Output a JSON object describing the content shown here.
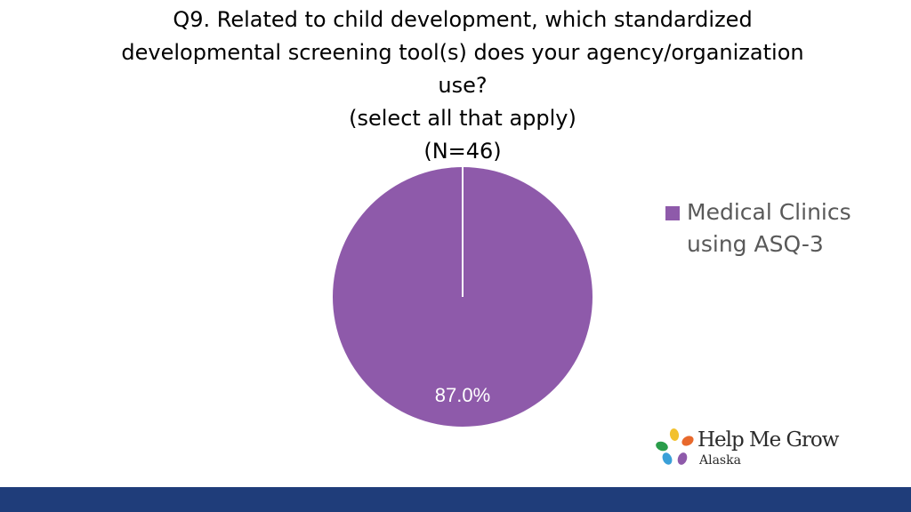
{
  "chart_data": {
    "type": "pie",
    "title_lines": [
      "Q9. Related to child development, which standardized",
      "developmental screening tool(s) does your agency/organization",
      "use?",
      "(select all that apply)",
      "(N=46)"
    ],
    "slices": [
      {
        "label": "Medical Clinics using ASQ-3",
        "value": 87.0,
        "display": "87.0%",
        "color": "#8e5aaa"
      }
    ],
    "slice_border_color": "#ffffff",
    "legend": {
      "placement": "right",
      "lines": [
        "Medical Clinics",
        "using ASQ-3"
      ],
      "color": "#8e5aaa"
    }
  },
  "logo": {
    "brand": "Help Me Grow",
    "region": "Alaska",
    "colors": [
      "#f2c12e",
      "#e8692c",
      "#2a9d4a",
      "#3aa0d8",
      "#8e5aaa"
    ]
  },
  "footer": {
    "color": "#1f3d7a"
  }
}
